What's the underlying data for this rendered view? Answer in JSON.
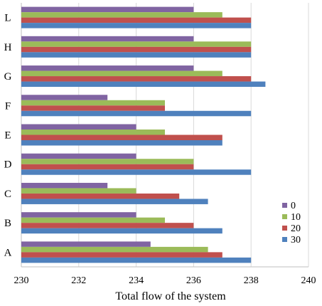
{
  "chart_data": {
    "type": "bar",
    "orientation": "horizontal",
    "title": "",
    "xlabel": "Total flow of the system",
    "ylabel": "",
    "xlim": [
      230,
      240
    ],
    "x_ticks": [
      "230",
      "232",
      "234",
      "236",
      "238",
      "240"
    ],
    "grid": "vertical",
    "legend_position": "right",
    "categories": [
      "A",
      "B",
      "C",
      "D",
      "E",
      "F",
      "G",
      "H",
      "L"
    ],
    "series": [
      {
        "name": "0",
        "color": "#8064a2",
        "values": [
          234.5,
          234,
          233,
          234,
          234,
          233,
          236,
          236,
          236
        ]
      },
      {
        "name": "10",
        "color": "#9bbb59",
        "values": [
          236.5,
          235,
          234,
          236,
          235,
          235,
          237,
          238,
          237
        ]
      },
      {
        "name": "20",
        "color": "#c0504d",
        "values": [
          237,
          236,
          235.5,
          236,
          237,
          235,
          238,
          238,
          238
        ]
      },
      {
        "name": "30",
        "color": "#4f81bd",
        "values": [
          238,
          237,
          236.5,
          238,
          237,
          238,
          238.5,
          238,
          238
        ]
      }
    ]
  }
}
